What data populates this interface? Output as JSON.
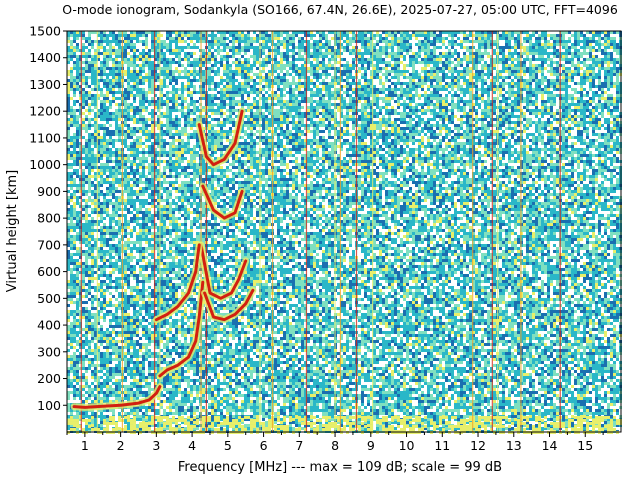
{
  "chart_data": {
    "type": "heatmap",
    "title": "O-mode ionogram, Sodankyla (SO166, 67.4N, 26.6E), 2025-07-27, 05:00 UTC, FFT=4096",
    "xlabel": "Frequency [MHz]   ---   max = 109 dB; scale = 99 dB",
    "ylabel": "Virtual height [km]",
    "xlim": [
      0.5,
      16.0
    ],
    "ylim": [
      0,
      1500
    ],
    "x_ticks": [
      1,
      2,
      3,
      4,
      5,
      6,
      7,
      8,
      9,
      10,
      11,
      12,
      13,
      14,
      15
    ],
    "y_ticks": [
      100,
      200,
      300,
      400,
      500,
      600,
      700,
      800,
      900,
      1000,
      1100,
      1200,
      1300,
      1400,
      1500
    ],
    "max_db": 109,
    "scale_db": 99,
    "colormap": [
      "#ffffff",
      "#1a6fb0",
      "#2ab7c8",
      "#7fe0c0",
      "#e8ef6a",
      "#f4a020",
      "#d22010",
      "#8a0000"
    ],
    "traces": [
      {
        "name": "",
        "x": [
          0.7,
          1.0,
          1.5,
          2.0,
          2.5,
          2.8,
          3.0,
          3.1
        ],
        "y": [
          95,
          92,
          96,
          100,
          108,
          120,
          145,
          170
        ]
      },
      {
        "name": "",
        "x": [
          3.1,
          3.3,
          3.6,
          3.9,
          4.1,
          4.2,
          4.3
        ],
        "y": [
          210,
          232,
          250,
          280,
          340,
          430,
          560
        ]
      },
      {
        "name": "",
        "x": [
          4.25,
          4.5,
          4.8,
          5.1,
          5.3,
          5.5
        ],
        "y": [
          700,
          520,
          500,
          520,
          570,
          640
        ]
      },
      {
        "name": "",
        "x": [
          4.35,
          4.6,
          4.9,
          5.2,
          5.5,
          5.7
        ],
        "y": [
          520,
          430,
          420,
          440,
          480,
          530
        ]
      },
      {
        "name": "",
        "x": [
          3.0,
          3.3,
          3.6,
          3.9,
          4.1,
          4.2
        ],
        "y": [
          420,
          440,
          470,
          520,
          600,
          700
        ]
      },
      {
        "name": "",
        "x": [
          4.2,
          4.4,
          4.6,
          4.9,
          5.2,
          5.4
        ],
        "y": [
          1150,
          1030,
          1000,
          1020,
          1080,
          1200
        ]
      },
      {
        "name": "",
        "x": [
          4.3,
          4.6,
          4.9,
          5.2,
          5.4
        ],
        "y": [
          920,
          830,
          800,
          820,
          900
        ]
      }
    ],
    "vertical_lines_mhz": [
      0.9,
      1.35,
      2.05,
      2.95,
      3.1,
      4.25,
      4.4,
      5.9,
      6.25,
      7.2,
      8.0,
      8.15,
      8.6,
      9.05,
      11.85,
      12.4,
      12.55,
      13.2,
      14.3
    ],
    "grid": false,
    "legend": "none"
  }
}
